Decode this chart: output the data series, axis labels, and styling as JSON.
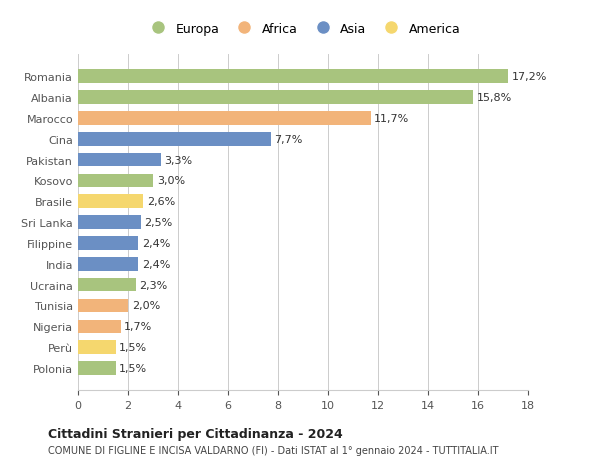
{
  "categories": [
    "Polonia",
    "Perù",
    "Nigeria",
    "Tunisia",
    "Ucraina",
    "India",
    "Filippine",
    "Sri Lanka",
    "Brasile",
    "Kosovo",
    "Pakistan",
    "Cina",
    "Marocco",
    "Albania",
    "Romania"
  ],
  "values": [
    1.5,
    1.5,
    1.7,
    2.0,
    2.3,
    2.4,
    2.4,
    2.5,
    2.6,
    3.0,
    3.3,
    7.7,
    11.7,
    15.8,
    17.2
  ],
  "labels": [
    "1,5%",
    "1,5%",
    "1,7%",
    "2,0%",
    "2,3%",
    "2,4%",
    "2,4%",
    "2,5%",
    "2,6%",
    "3,0%",
    "3,3%",
    "7,7%",
    "11,7%",
    "15,8%",
    "17,2%"
  ],
  "continents": [
    "Europa",
    "America",
    "Africa",
    "Africa",
    "Europa",
    "Asia",
    "Asia",
    "Asia",
    "America",
    "Europa",
    "Asia",
    "Asia",
    "Africa",
    "Europa",
    "Europa"
  ],
  "colors": {
    "Europa": "#a8c47e",
    "Africa": "#f2b47a",
    "Asia": "#6b8fc4",
    "America": "#f5d76e"
  },
  "legend_labels": [
    "Europa",
    "Africa",
    "Asia",
    "America"
  ],
  "legend_colors": [
    "#a8c47e",
    "#f2b47a",
    "#6b8fc4",
    "#f5d76e"
  ],
  "title": "Cittadini Stranieri per Cittadinanza - 2024",
  "subtitle": "COMUNE DI FIGLINE E INCISA VALDARNO (FI) - Dati ISTAT al 1° gennaio 2024 - TUTTITALIA.IT",
  "xlim": [
    0,
    18
  ],
  "xticks": [
    0,
    2,
    4,
    6,
    8,
    10,
    12,
    14,
    16,
    18
  ],
  "background_color": "#ffffff",
  "grid_color": "#cccccc",
  "bar_height": 0.65
}
